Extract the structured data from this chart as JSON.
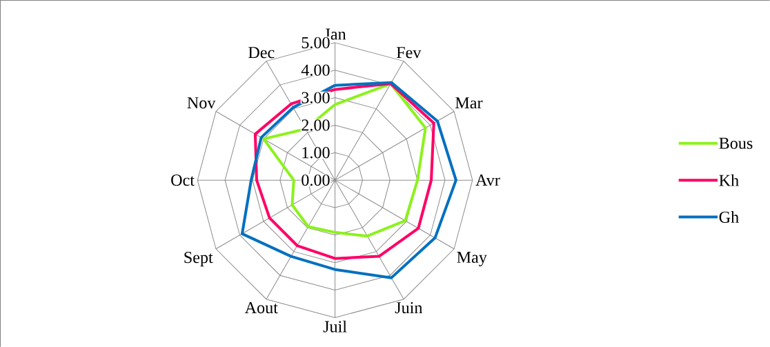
{
  "chart_data": {
    "type": "radar",
    "categories": [
      "Jan",
      "Fev",
      "Mar",
      "Avr",
      "May",
      "Juin",
      "Juil",
      "Aout",
      "Sept",
      "Oct",
      "Nov",
      "Dec"
    ],
    "series": [
      {
        "name": "Bous",
        "color": "#8cf21c",
        "values": [
          2.75,
          4.05,
          3.8,
          3.0,
          2.95,
          2.35,
          1.9,
          1.95,
          1.8,
          1.5,
          3.0,
          2.15
        ]
      },
      {
        "name": "Kh",
        "color": "#ff0066",
        "values": [
          3.3,
          4.05,
          4.15,
          3.5,
          3.5,
          3.2,
          2.85,
          2.75,
          2.75,
          2.85,
          3.35,
          3.2
        ]
      },
      {
        "name": "Gh",
        "color": "#0070c0",
        "values": [
          3.45,
          4.1,
          4.3,
          4.4,
          4.2,
          4.1,
          3.25,
          3.2,
          3.9,
          3.05,
          3.1,
          3.05
        ]
      }
    ],
    "ylim": [
      0,
      5
    ],
    "yticks": [
      {
        "value": 0,
        "label": "0.00"
      },
      {
        "value": 1,
        "label": "1.00"
      },
      {
        "value": 2,
        "label": "2.00"
      },
      {
        "value": 3,
        "label": "3.00"
      },
      {
        "value": 4,
        "label": "4.00"
      },
      {
        "value": 5,
        "label": "5.00"
      }
    ],
    "grid": true,
    "legend": "right"
  }
}
